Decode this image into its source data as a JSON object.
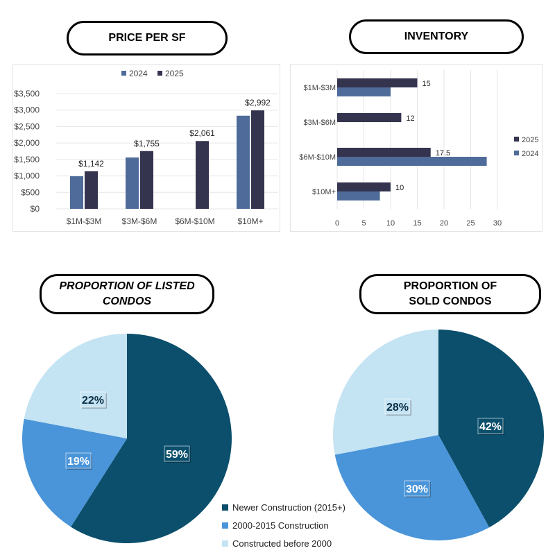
{
  "colors": {
    "c2024": "#4f6b9a",
    "c2025": "#35344f",
    "newer": "#0b4f6c",
    "mid": "#4a95d9",
    "old": "#c4e3f3"
  },
  "titles": {
    "price": "PRICE PER SF",
    "inventory": "INVENTORY",
    "listed_line1": "PROPORTION OF LISTED",
    "listed_line2": "CONDOS",
    "sold_line1": "PROPORTION OF",
    "sold_line2": "SOLD CONDOS"
  },
  "chart_data": [
    {
      "type": "bar",
      "title": "PRICE PER SF",
      "categories": [
        "$1M-$3M",
        "$3M-$6M",
        "$6M-$10M",
        "$10M+"
      ],
      "series": [
        {
          "name": "2024",
          "values": [
            990,
            1560,
            null,
            2830
          ]
        },
        {
          "name": "2025",
          "values": [
            1142,
            1755,
            2061,
            2992
          ]
        }
      ],
      "data_labels": [
        "$1,142",
        "$1,755",
        "$2,061",
        "$2,992"
      ],
      "yticks": [
        "$0",
        "$500",
        "$1,000",
        "$1,500",
        "$2,000",
        "$2,500",
        "$3,000",
        "$3,500"
      ],
      "ylim": [
        0,
        3500
      ],
      "legend": "top",
      "grid": true
    },
    {
      "type": "bar",
      "orientation": "horizontal",
      "title": "INVENTORY",
      "categories": [
        "$1M-$3M",
        "$3M-$6M",
        "$6M-$10M",
        "$10M+"
      ],
      "series": [
        {
          "name": "2025",
          "values": [
            15,
            12,
            17.5,
            10
          ]
        },
        {
          "name": "2024",
          "values": [
            10,
            null,
            28,
            8
          ]
        }
      ],
      "data_labels": [
        "15",
        "12",
        "17.5",
        "10"
      ],
      "xticks": [
        "0",
        "5",
        "10",
        "15",
        "20",
        "25",
        "30"
      ],
      "xlim": [
        0,
        30
      ],
      "legend": "right",
      "grid": true
    },
    {
      "type": "pie",
      "title": "PROPORTION OF LISTED CONDOS",
      "labels": [
        "Newer Construction (2015+)",
        "2000-2015 Construction",
        "Constructed before 2000"
      ],
      "values": [
        59,
        19,
        22
      ],
      "value_labels": [
        "59%",
        "19%",
        "22%"
      ],
      "legend": "bottom-right"
    },
    {
      "type": "pie",
      "title": "PROPORTION OF SOLD CONDOS",
      "labels": [
        "Newer Construction (2015+)",
        "2000-2015 Construction",
        "Constructed before 2000"
      ],
      "values": [
        42,
        30,
        28
      ],
      "value_labels": [
        "42%",
        "30%",
        "28%"
      ]
    }
  ]
}
